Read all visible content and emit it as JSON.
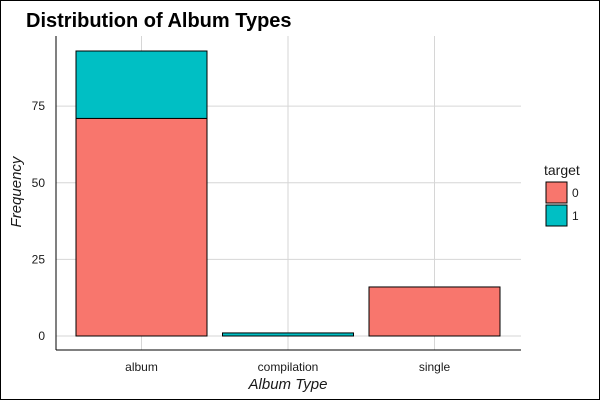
{
  "chart_data": {
    "type": "bar",
    "stacked": true,
    "title": "Distribution of Album Types",
    "xlabel": "Album Type",
    "ylabel": "Frequency",
    "categories": [
      "album",
      "compilation",
      "single"
    ],
    "series": [
      {
        "name": "0",
        "values": [
          71,
          0,
          16
        ],
        "color": "#F8766D"
      },
      {
        "name": "1",
        "values": [
          22,
          1,
          0
        ],
        "color": "#00BFC4"
      }
    ],
    "ylim": [
      0,
      93
    ],
    "yticks": [
      0,
      25,
      50,
      75
    ],
    "legend": {
      "title": "target",
      "position": "right"
    },
    "grid": true
  }
}
